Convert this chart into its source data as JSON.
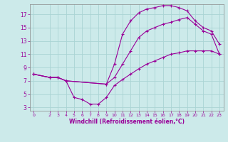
{
  "xlabel": "Windchill (Refroidissement éolien,°C)",
  "bg_color": "#cceaea",
  "line_color": "#990099",
  "grid_color": "#aad4d4",
  "xlim": [
    -0.5,
    23.5
  ],
  "ylim": [
    2.5,
    18.5
  ],
  "yticks": [
    3,
    5,
    7,
    9,
    11,
    13,
    15,
    17
  ],
  "xticks": [
    0,
    2,
    3,
    4,
    5,
    6,
    7,
    8,
    9,
    10,
    11,
    12,
    13,
    14,
    15,
    16,
    17,
    18,
    19,
    20,
    21,
    22,
    23
  ],
  "series": [
    {
      "x": [
        0,
        2,
        3,
        4,
        5,
        6,
        7,
        8,
        9,
        10,
        11,
        12,
        13,
        14,
        15,
        16,
        17,
        18,
        19,
        20,
        21,
        22,
        23
      ],
      "y": [
        8.0,
        7.5,
        7.5,
        7.0,
        4.5,
        4.2,
        3.5,
        3.5,
        4.5,
        6.3,
        7.2,
        8.0,
        8.8,
        9.5,
        10.0,
        10.5,
        11.0,
        11.2,
        11.5,
        11.5,
        11.5,
        11.5,
        11.0
      ]
    },
    {
      "x": [
        0,
        2,
        3,
        4,
        9,
        10,
        11,
        12,
        13,
        14,
        15,
        16,
        17,
        18,
        19,
        20,
        21,
        22,
        23
      ],
      "y": [
        8.0,
        7.5,
        7.5,
        7.0,
        6.5,
        9.5,
        14.0,
        16.0,
        17.2,
        17.8,
        18.0,
        18.3,
        18.3,
        18.0,
        17.5,
        16.0,
        15.0,
        14.5,
        12.5
      ]
    },
    {
      "x": [
        0,
        2,
        3,
        4,
        9,
        10,
        11,
        12,
        13,
        14,
        15,
        16,
        17,
        18,
        19,
        20,
        21,
        22,
        23
      ],
      "y": [
        8.0,
        7.5,
        7.5,
        7.0,
        6.5,
        7.5,
        9.5,
        11.5,
        13.5,
        14.5,
        15.0,
        15.5,
        15.8,
        16.2,
        16.5,
        15.5,
        14.5,
        14.0,
        11.0
      ]
    }
  ]
}
